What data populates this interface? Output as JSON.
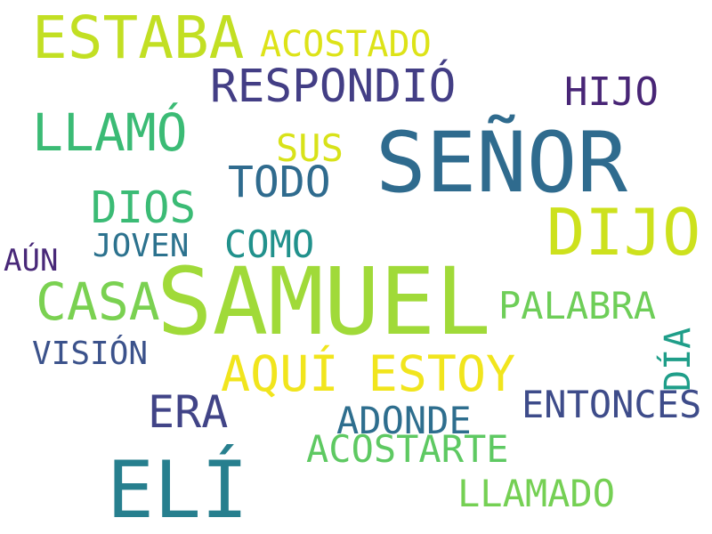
{
  "words": [
    {
      "text": "SAMUEL",
      "color": "#a0da39"
    },
    {
      "text": "SEÑOR",
      "color": "#2f6b8e"
    },
    {
      "text": "ELÍ",
      "color": "#277f8e"
    },
    {
      "text": "DIJO",
      "color": "#cde11d"
    },
    {
      "text": "ESTABA",
      "color": "#c2df23"
    },
    {
      "text": "AQUÍ ESTOY",
      "color": "#f1e51d"
    },
    {
      "text": "LLAMÓ",
      "color": "#3bbb75"
    },
    {
      "text": "RESPONDIÓ",
      "color": "#433e85"
    },
    {
      "text": "CASA",
      "color": "#7ad151"
    },
    {
      "text": "DIOS",
      "color": "#3bbb75"
    },
    {
      "text": "TODO",
      "color": "#2f6b8e"
    },
    {
      "text": "ERA",
      "color": "#414487"
    },
    {
      "text": "ACOSTARTE",
      "color": "#5ec962"
    },
    {
      "text": "LLAMADO",
      "color": "#75d054"
    },
    {
      "text": "ENTONCES",
      "color": "#3e4c8a"
    },
    {
      "text": "ADONDE",
      "color": "#2e6e8e"
    },
    {
      "text": "PALABRA",
      "color": "#6ece58"
    },
    {
      "text": "ACOSTADO",
      "color": "#dde318"
    },
    {
      "text": "HIJO",
      "color": "#482576"
    },
    {
      "text": "COMO",
      "color": "#21918c"
    },
    {
      "text": "SUS",
      "color": "#d8e219"
    },
    {
      "text": "JOVEN",
      "color": "#2c728e"
    },
    {
      "text": "VISIÓN",
      "color": "#3b528b"
    },
    {
      "text": "AÚN",
      "color": "#482878"
    },
    {
      "text": "DÍA",
      "color": "#1f9e89"
    }
  ]
}
